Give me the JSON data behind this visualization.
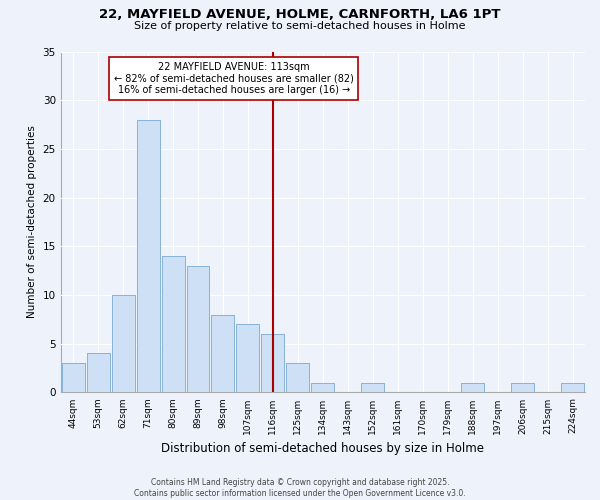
{
  "title": "22, MAYFIELD AVENUE, HOLME, CARNFORTH, LA6 1PT",
  "subtitle": "Size of property relative to semi-detached houses in Holme",
  "xlabel": "Distribution of semi-detached houses by size in Holme",
  "ylabel": "Number of semi-detached properties",
  "bar_color": "#cde0f5",
  "bar_edge_color": "#88b4d8",
  "background_color": "#eef2fb",
  "grid_color": "#ffffff",
  "bins_center": [
    44,
    53,
    62,
    71,
    80,
    89,
    98,
    107,
    116,
    125,
    134,
    143,
    152,
    161,
    170,
    179,
    188,
    197,
    206,
    215,
    224
  ],
  "counts": [
    3,
    4,
    10,
    28,
    14,
    13,
    8,
    7,
    6,
    3,
    1,
    0,
    1,
    0,
    0,
    0,
    1,
    0,
    1,
    0,
    1
  ],
  "tick_labels": [
    "44sqm",
    "53sqm",
    "62sqm",
    "71sqm",
    "80sqm",
    "89sqm",
    "98sqm",
    "107sqm",
    "116sqm",
    "125sqm",
    "134sqm",
    "143sqm",
    "152sqm",
    "161sqm",
    "170sqm",
    "179sqm",
    "188sqm",
    "197sqm",
    "206sqm",
    "215sqm",
    "224sqm"
  ],
  "property_line_x": 116,
  "property_line_color": "#aa0000",
  "annotation_title": "22 MAYFIELD AVENUE: 113sqm",
  "annotation_line1": "← 82% of semi-detached houses are smaller (82)",
  "annotation_line2": "16% of semi-detached houses are larger (16) →",
  "annotation_box_color": "#ffffff",
  "annotation_box_edge": "#aa0000",
  "ylim": [
    0,
    35
  ],
  "yticks": [
    0,
    5,
    10,
    15,
    20,
    25,
    30,
    35
  ],
  "footer_line1": "Contains HM Land Registry data © Crown copyright and database right 2025.",
  "footer_line2": "Contains public sector information licensed under the Open Government Licence v3.0."
}
